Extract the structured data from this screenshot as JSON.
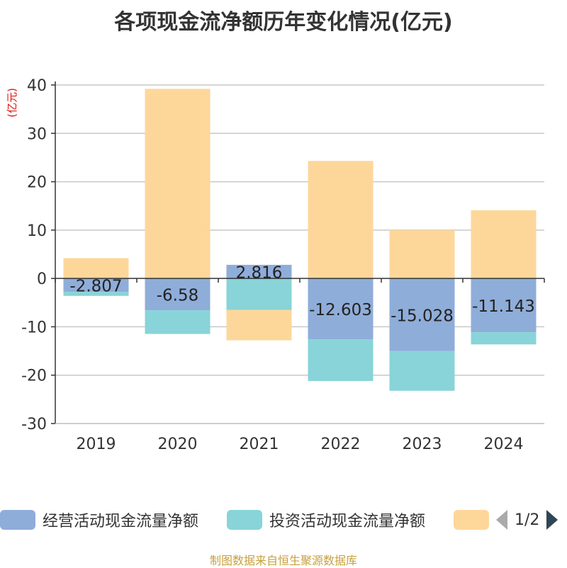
{
  "chart_data": {
    "type": "bar",
    "stacked": true,
    "title": "各项现金流净额历年变化情况(亿元)",
    "ylabel": "(亿元)",
    "categories": [
      "2019",
      "2020",
      "2021",
      "2022",
      "2023",
      "2024"
    ],
    "ylim": [
      -30,
      40
    ],
    "yticks": [
      40,
      30,
      20,
      10,
      0,
      -10,
      -20,
      -30
    ],
    "grid": true,
    "series": [
      {
        "name": "经营活动现金流量净额",
        "color": "#8fadd9",
        "values": [
          -2.807,
          -6.58,
          2.816,
          -12.603,
          -15.028,
          -11.143
        ],
        "labels": [
          "-2.807",
          "-6.58",
          "2.816",
          "-12.603",
          "-15.028",
          "-11.143"
        ]
      },
      {
        "name": "投资活动现金流量净额",
        "color": "#88d4d8",
        "values": [
          -0.8,
          -4.9,
          -6.5,
          -8.6,
          -8.2,
          -2.5
        ]
      },
      {
        "name": "",
        "color": "#fdd79a",
        "values": [
          4.2,
          39.2,
          -6.3,
          24.3,
          10.0,
          14.1
        ]
      }
    ]
  },
  "legend": {
    "page": "1/2"
  },
  "footer": "制图数据来自恒生聚源数据库"
}
